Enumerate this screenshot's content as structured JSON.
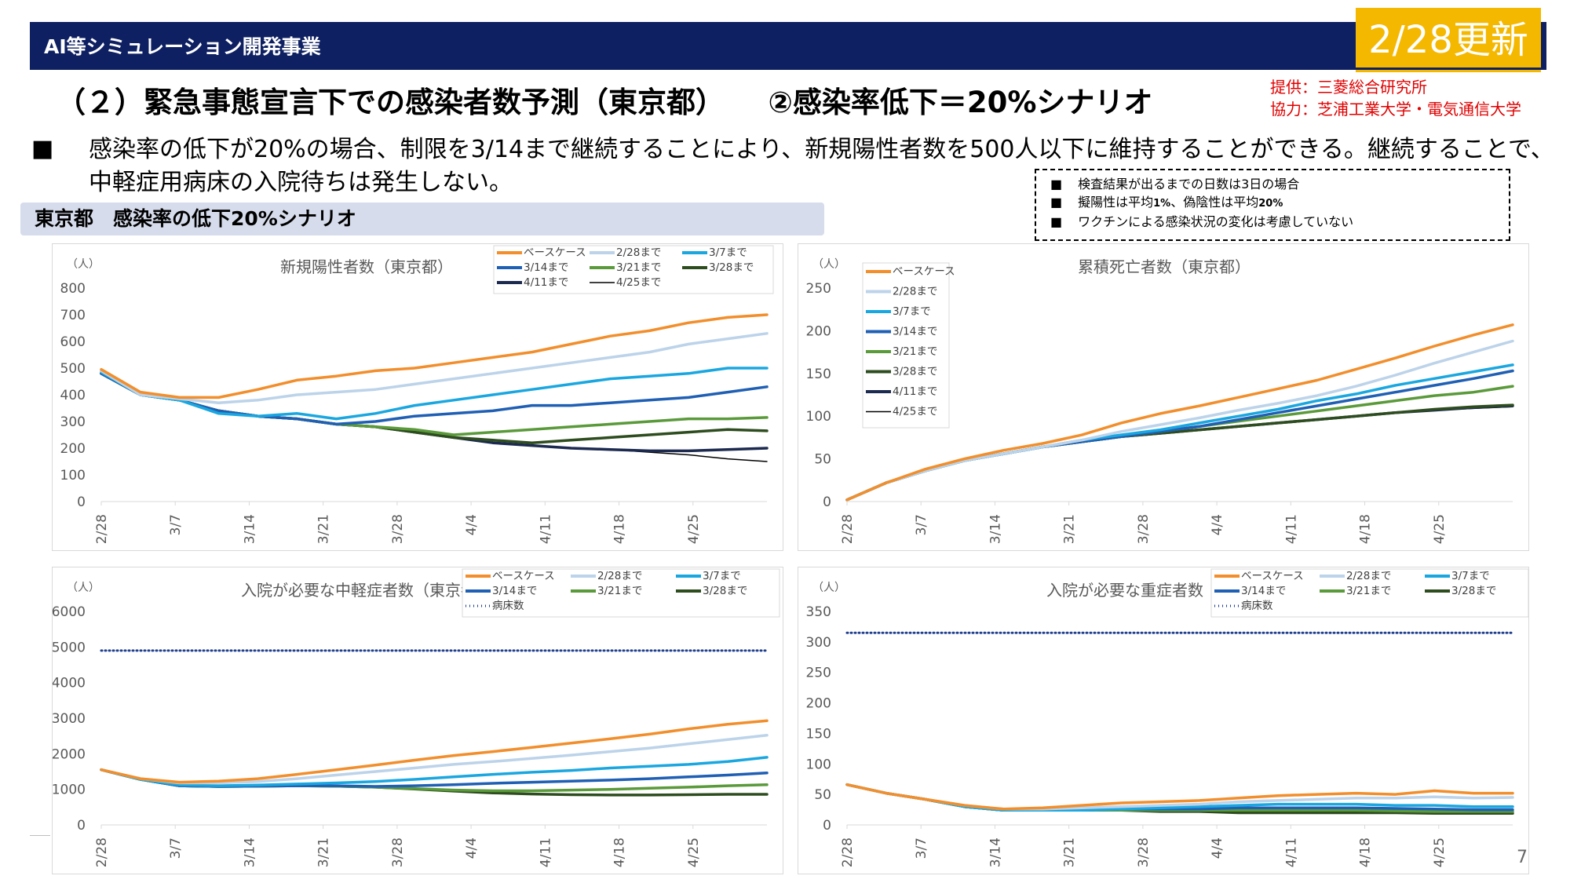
{
  "header": {
    "title": "AI等シミュレーション開発事業",
    "update_badge": "2/28更新"
  },
  "page_title": "（２）緊急事態宣言下での感染者数予測（東京都）　　②感染率低下＝20%シナリオ",
  "credits": {
    "line1": "提供：三菱総合研究所",
    "line2": "協力：芝浦工業大学・電気通信大学"
  },
  "description": {
    "bullet": "■",
    "text": "感染率の低下が20%の場合、制限を3/14まで継続することにより、新規陽性者数を500人以下に維持することができる。継続することで、中軽症用病床の入院待ちは発生しない。"
  },
  "notes": [
    {
      "bullet": "■",
      "text": "検査結果が出るまでの日数は3日の場合"
    },
    {
      "bullet": "■",
      "parts": [
        "擬陽性は平均",
        "1%",
        "、偽陰性は平均",
        "20%"
      ]
    },
    {
      "bullet": "■",
      "text": "ワクチンによる感染状況の変化は考慮していない"
    }
  ],
  "section_label": "東京都　感染率の低下20%シナリオ",
  "colors": {
    "base": "#f28e2b",
    "c228": "#bcd3ea",
    "c37": "#1aa7e0",
    "c314": "#1f5fb4",
    "c321": "#5a9a3a",
    "c328": "#2e4d1f",
    "c411": "#1c2a50",
    "c425": "#000000",
    "beds": "#1f3f8f"
  },
  "page_number": "7",
  "chart_data": [
    {
      "type": "line",
      "title": "新規陽性者数（東京都）",
      "ylabel": "（人）",
      "ylim": [
        0,
        800
      ],
      "yticks": [
        "0",
        "100",
        "200",
        "300",
        "400",
        "500",
        "600",
        "700",
        "800"
      ],
      "xticks": [
        "2/28",
        "3/7",
        "3/14",
        "3/21",
        "3/28",
        "4/4",
        "4/11",
        "4/18",
        "4/25"
      ],
      "x_days": 63,
      "legend_position": "top-right",
      "series": [
        {
          "name": "ベースケース",
          "key": "base",
          "values": [
            495,
            410,
            390,
            390,
            420,
            455,
            470,
            490,
            500,
            520,
            540,
            560,
            590,
            620,
            640,
            670,
            690,
            700
          ]
        },
        {
          "name": "2/28まで",
          "key": "c228",
          "values": [
            490,
            400,
            385,
            370,
            380,
            400,
            410,
            420,
            440,
            460,
            480,
            500,
            520,
            540,
            560,
            590,
            610,
            630
          ]
        },
        {
          "name": "3/7まで",
          "key": "c37",
          "values": [
            485,
            400,
            380,
            330,
            320,
            330,
            310,
            330,
            360,
            380,
            400,
            420,
            440,
            460,
            470,
            480,
            500,
            500
          ]
        },
        {
          "name": "3/14まで",
          "key": "c314",
          "values": [
            480,
            400,
            380,
            340,
            320,
            310,
            290,
            300,
            320,
            330,
            340,
            360,
            360,
            370,
            380,
            390,
            410,
            430
          ]
        },
        {
          "name": "3/21まで",
          "key": "c321",
          "values": [
            480,
            400,
            380,
            340,
            320,
            310,
            290,
            280,
            270,
            250,
            260,
            270,
            280,
            290,
            300,
            310,
            310,
            315
          ]
        },
        {
          "name": "3/28まで",
          "key": "c328",
          "values": [
            480,
            400,
            380,
            340,
            320,
            310,
            290,
            280,
            260,
            240,
            230,
            220,
            230,
            240,
            250,
            260,
            270,
            265
          ]
        },
        {
          "name": "4/11まで",
          "key": "c411",
          "values": [
            480,
            400,
            380,
            340,
            320,
            310,
            290,
            280,
            260,
            240,
            220,
            210,
            200,
            195,
            190,
            190,
            195,
            200
          ]
        },
        {
          "name": "4/25まで",
          "key": "c425",
          "values": [
            480,
            400,
            380,
            340,
            320,
            310,
            290,
            280,
            260,
            240,
            220,
            210,
            200,
            195,
            185,
            175,
            160,
            150
          ]
        }
      ]
    },
    {
      "type": "line",
      "title": "累積死亡者数（東京都）",
      "ylabel": "（人）",
      "ylim": [
        0,
        250
      ],
      "yticks": [
        "0",
        "50",
        "100",
        "150",
        "200",
        "250"
      ],
      "xticks": [
        "2/28",
        "3/7",
        "3/14",
        "3/21",
        "3/28",
        "4/4",
        "4/11",
        "4/18",
        "4/25"
      ],
      "x_days": 63,
      "legend_position": "top-left",
      "series": [
        {
          "name": "ベースケース",
          "key": "base",
          "values": [
            2,
            22,
            38,
            50,
            60,
            68,
            78,
            92,
            103,
            112,
            122,
            132,
            142,
            155,
            168,
            182,
            195,
            207
          ]
        },
        {
          "name": "2/28まで",
          "key": "c228",
          "values": [
            2,
            22,
            36,
            48,
            56,
            64,
            72,
            82,
            90,
            98,
            107,
            115,
            124,
            135,
            148,
            162,
            175,
            188
          ]
        },
        {
          "name": "3/7まで",
          "key": "c37",
          "values": [
            2,
            22,
            36,
            48,
            56,
            64,
            72,
            78,
            84,
            92,
            100,
            108,
            118,
            126,
            136,
            144,
            152,
            160
          ]
        },
        {
          "name": "3/14まで",
          "key": "c314",
          "values": [
            2,
            22,
            36,
            48,
            56,
            64,
            70,
            76,
            82,
            88,
            96,
            104,
            112,
            120,
            128,
            136,
            144,
            153
          ]
        },
        {
          "name": "3/21まで",
          "key": "c321",
          "values": [
            2,
            22,
            36,
            48,
            56,
            64,
            70,
            76,
            82,
            88,
            94,
            100,
            106,
            112,
            118,
            124,
            128,
            135
          ]
        },
        {
          "name": "3/28まで",
          "key": "c328",
          "values": [
            2,
            22,
            36,
            48,
            56,
            64,
            70,
            76,
            80,
            84,
            88,
            92,
            96,
            100,
            104,
            108,
            111,
            113
          ]
        },
        {
          "name": "4/11まで",
          "key": "c411",
          "values": [
            2,
            22,
            36,
            48,
            56,
            64,
            70,
            76,
            80,
            84,
            88,
            92,
            96,
            100,
            104,
            107,
            110,
            112
          ]
        },
        {
          "name": "4/25まで",
          "key": "c425",
          "values": [
            2,
            22,
            36,
            48,
            56,
            64,
            70,
            76,
            80,
            84,
            88,
            92,
            96,
            100,
            104,
            107,
            109,
            111
          ]
        }
      ]
    },
    {
      "type": "line",
      "title": "入院が必要な中軽症者数（東京都）",
      "ylabel": "（人）",
      "ylim": [
        0,
        6000
      ],
      "yticks": [
        "0",
        "1000",
        "2000",
        "3000",
        "4000",
        "5000",
        "6000"
      ],
      "xticks": [
        "2/28",
        "3/7",
        "3/14",
        "3/21",
        "3/28",
        "4/4",
        "4/11",
        "4/18",
        "4/25"
      ],
      "x_days": 63,
      "legend_position": "top-right",
      "series": [
        {
          "name": "ベースケース",
          "key": "base",
          "values": [
            1550,
            1300,
            1200,
            1230,
            1300,
            1420,
            1550,
            1680,
            1820,
            1950,
            2060,
            2180,
            2300,
            2420,
            2550,
            2700,
            2830,
            2930
          ]
        },
        {
          "name": "2/28まで",
          "key": "c228",
          "values": [
            1550,
            1300,
            1180,
            1180,
            1220,
            1300,
            1400,
            1500,
            1600,
            1700,
            1780,
            1870,
            1960,
            2060,
            2160,
            2280,
            2400,
            2520
          ]
        },
        {
          "name": "3/7まで",
          "key": "c37",
          "values": [
            1550,
            1280,
            1120,
            1100,
            1120,
            1150,
            1180,
            1220,
            1280,
            1350,
            1420,
            1480,
            1530,
            1600,
            1650,
            1700,
            1780,
            1900
          ]
        },
        {
          "name": "3/14まで",
          "key": "c314",
          "values": [
            1550,
            1280,
            1100,
            1080,
            1090,
            1100,
            1100,
            1080,
            1100,
            1130,
            1170,
            1200,
            1230,
            1260,
            1300,
            1350,
            1400,
            1460
          ]
        },
        {
          "name": "3/21まで",
          "key": "c321",
          "values": [
            1550,
            1280,
            1100,
            1080,
            1090,
            1100,
            1090,
            1060,
            1020,
            980,
            960,
            960,
            980,
            1000,
            1030,
            1060,
            1100,
            1130
          ]
        },
        {
          "name": "3/28まで",
          "key": "c328",
          "values": [
            1550,
            1280,
            1100,
            1080,
            1090,
            1100,
            1090,
            1060,
            1010,
            950,
            900,
            870,
            850,
            840,
            840,
            850,
            860,
            860
          ]
        },
        {
          "name": "病床数",
          "key": "beds",
          "dotted": true,
          "values": [
            4900,
            4900
          ]
        }
      ]
    },
    {
      "type": "line",
      "title": "入院が必要な重症者数（東京都）",
      "ylabel": "（人）",
      "ylim": [
        0,
        350
      ],
      "yticks": [
        "0",
        "50",
        "100",
        "150",
        "200",
        "250",
        "300",
        "350"
      ],
      "xticks": [
        "2/28",
        "3/7",
        "3/14",
        "3/21",
        "3/28",
        "4/4",
        "4/11",
        "4/18",
        "4/25"
      ],
      "x_days": 63,
      "legend_position": "top-right",
      "series": [
        {
          "name": "ベースケース",
          "key": "base",
          "values": [
            66,
            52,
            42,
            32,
            26,
            28,
            32,
            36,
            38,
            40,
            44,
            48,
            50,
            52,
            50,
            56,
            52,
            52
          ]
        },
        {
          "name": "2/28まで",
          "key": "c228",
          "values": [
            66,
            52,
            42,
            32,
            26,
            26,
            28,
            30,
            32,
            34,
            38,
            40,
            42,
            44,
            44,
            46,
            44,
            45
          ]
        },
        {
          "name": "3/7まで",
          "key": "c37",
          "values": [
            66,
            52,
            42,
            30,
            24,
            24,
            24,
            26,
            28,
            30,
            32,
            34,
            34,
            34,
            32,
            32,
            30,
            30
          ]
        },
        {
          "name": "3/14まで",
          "key": "c314",
          "values": [
            66,
            52,
            42,
            30,
            24,
            24,
            24,
            26,
            26,
            26,
            28,
            28,
            28,
            28,
            27,
            26,
            25,
            25
          ]
        },
        {
          "name": "3/21まで",
          "key": "c321",
          "values": [
            66,
            52,
            42,
            30,
            24,
            24,
            24,
            24,
            24,
            24,
            24,
            24,
            24,
            24,
            23,
            22,
            22,
            22
          ]
        },
        {
          "name": "3/28まで",
          "key": "c328",
          "values": [
            66,
            52,
            42,
            30,
            24,
            24,
            24,
            24,
            22,
            22,
            20,
            20,
            20,
            20,
            20,
            19,
            19,
            19
          ]
        },
        {
          "name": "病床数",
          "key": "beds",
          "dotted": true,
          "values": [
            315,
            315
          ]
        }
      ]
    }
  ]
}
